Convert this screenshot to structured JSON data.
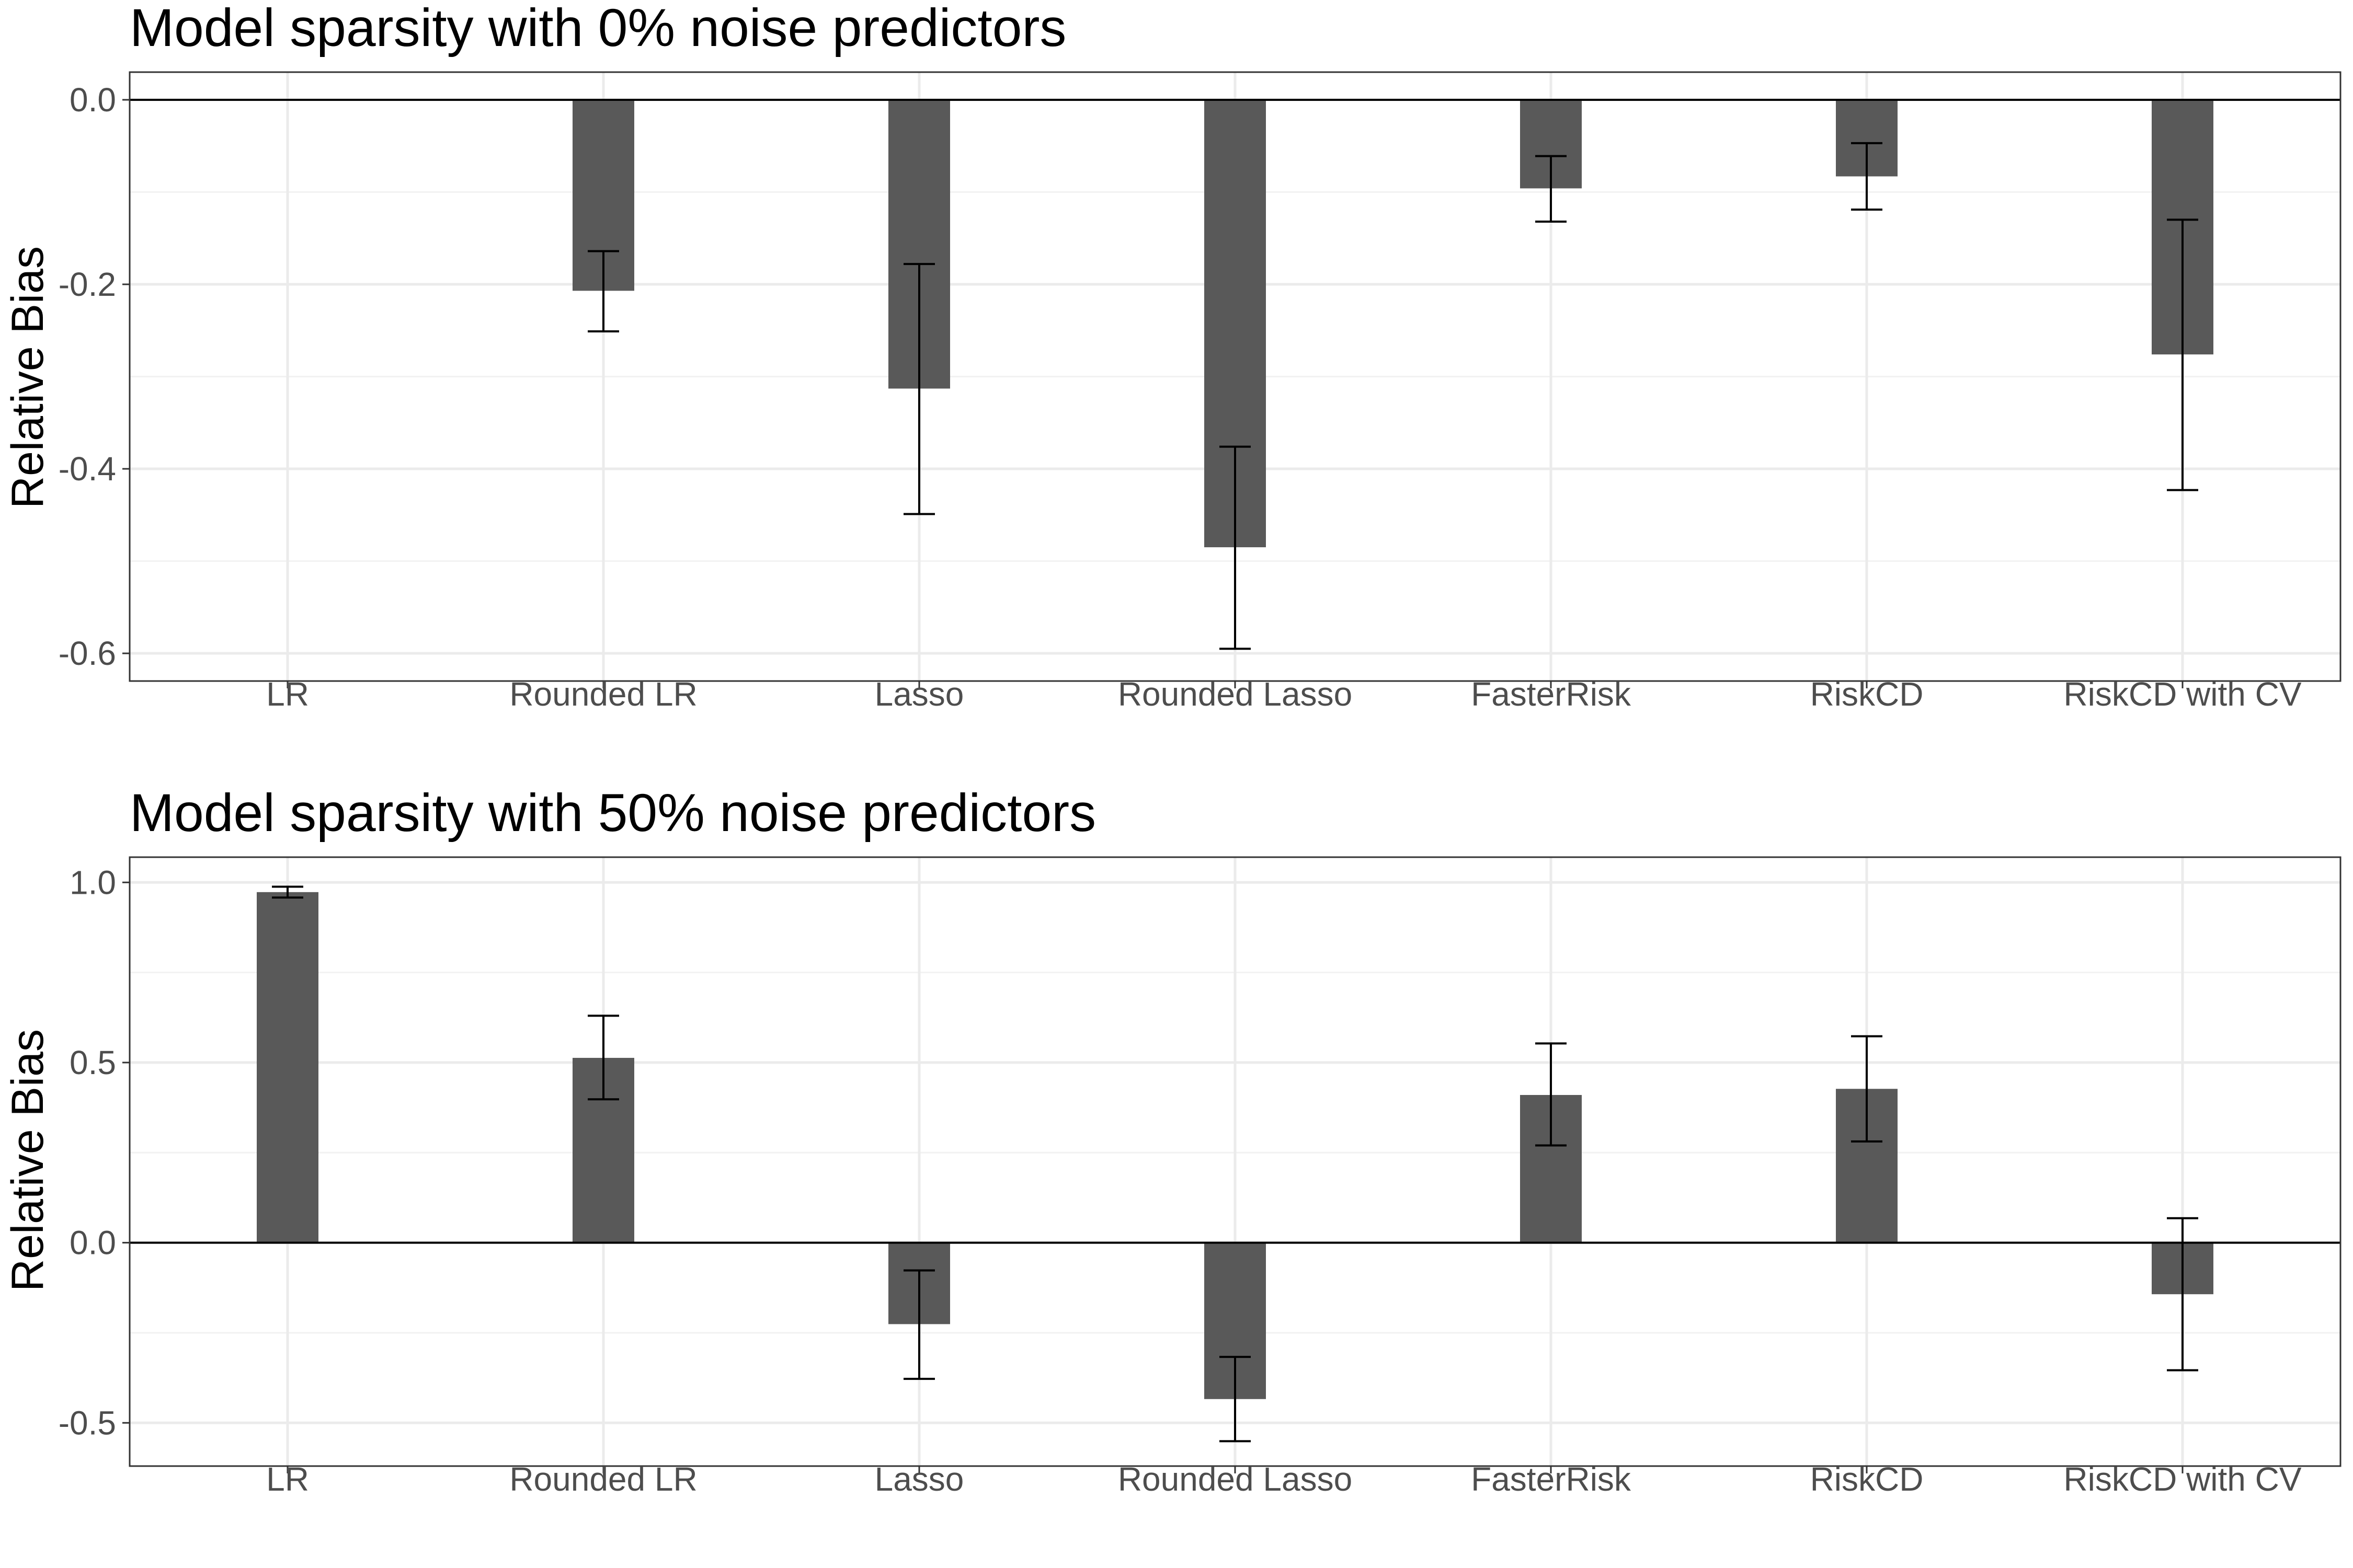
{
  "chart_data": [
    {
      "type": "bar",
      "title": "Model sparsity with 0% noise predictors",
      "xlabel": "",
      "ylabel": "Relative Bias",
      "categories": [
        "LR",
        "Rounded LR",
        "Lasso",
        "Rounded Lasso",
        "FasterRisk",
        "RiskCD",
        "RiskCD with CV"
      ],
      "values": [
        0.0,
        -0.207,
        -0.313,
        -0.485,
        -0.096,
        -0.083,
        -0.276
      ],
      "error_low": [
        null,
        -0.251,
        -0.449,
        -0.595,
        -0.132,
        -0.119,
        -0.423
      ],
      "error_high": [
        null,
        -0.164,
        -0.178,
        -0.376,
        -0.061,
        -0.047,
        -0.13
      ],
      "ylim": [
        -0.63,
        0.03
      ],
      "yticks": [
        0.0,
        -0.2,
        -0.4,
        -0.6
      ],
      "ytick_labels": [
        "0.0",
        "-0.2",
        "-0.4",
        "-0.6"
      ],
      "bar_color": "#595959",
      "grid": true,
      "legend": "none"
    },
    {
      "type": "bar",
      "title": "Model sparsity with 50% noise predictors",
      "xlabel": "",
      "ylabel": "Relative Bias",
      "categories": [
        "LR",
        "Rounded LR",
        "Lasso",
        "Rounded Lasso",
        "FasterRisk",
        "RiskCD",
        "RiskCD with CV"
      ],
      "values": [
        0.973,
        0.513,
        -0.226,
        -0.434,
        0.41,
        0.427,
        -0.143
      ],
      "error_low": [
        0.958,
        0.398,
        -0.378,
        -0.551,
        0.27,
        0.281,
        -0.354
      ],
      "error_high": [
        0.988,
        0.63,
        -0.077,
        -0.317,
        0.553,
        0.573,
        0.068
      ],
      "ylim": [
        -0.62,
        1.07
      ],
      "yticks": [
        1.0,
        0.5,
        0.0,
        -0.5
      ],
      "ytick_labels": [
        "1.0",
        "0.5",
        "0.0",
        "-0.5"
      ],
      "bar_color": "#595959",
      "grid": true,
      "legend": "none"
    }
  ]
}
